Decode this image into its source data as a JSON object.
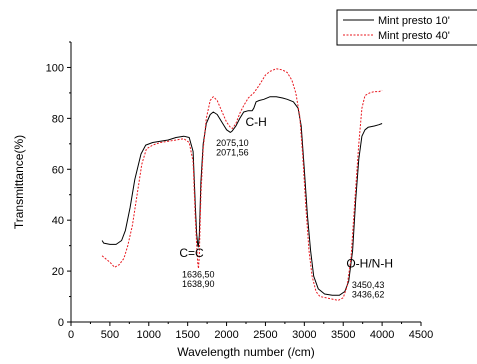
{
  "chart_data": {
    "type": "line",
    "title": "",
    "xlabel": "Wavelength number (/cm)",
    "ylabel": "Transmittance(%)",
    "xlim": [
      0,
      4500
    ],
    "ylim": [
      0,
      110
    ],
    "x_ticks": [
      "0",
      "500",
      "1000",
      "1500",
      "2000",
      "2500",
      "3000",
      "3500",
      "4000",
      "4500"
    ],
    "y_ticks": [
      "0",
      "20",
      "40",
      "60",
      "80",
      "100"
    ],
    "legend_position": "top-right",
    "grid": false,
    "series": [
      {
        "name": "Mint presto 10'",
        "color": "#000000",
        "style": "solid",
        "points": [
          [
            400,
            32
          ],
          [
            420,
            31
          ],
          [
            500,
            30.5
          ],
          [
            580,
            30.5
          ],
          [
            650,
            32
          ],
          [
            700,
            36
          ],
          [
            760,
            45
          ],
          [
            820,
            56
          ],
          [
            900,
            66
          ],
          [
            960,
            69.5
          ],
          [
            1050,
            70.5
          ],
          [
            1150,
            71
          ],
          [
            1250,
            71.5
          ],
          [
            1350,
            72.5
          ],
          [
            1450,
            73
          ],
          [
            1520,
            72.5
          ],
          [
            1570,
            67
          ],
          [
            1600,
            45
          ],
          [
            1615,
            35
          ],
          [
            1630,
            30
          ],
          [
            1637,
            29.5
          ],
          [
            1650,
            34
          ],
          [
            1670,
            55
          ],
          [
            1700,
            70
          ],
          [
            1740,
            78
          ],
          [
            1790,
            81.5
          ],
          [
            1830,
            82.5
          ],
          [
            1880,
            81.5
          ],
          [
            1950,
            78
          ],
          [
            2000,
            75.5
          ],
          [
            2050,
            74.5
          ],
          [
            2071,
            75
          ],
          [
            2120,
            77
          ],
          [
            2170,
            80
          ],
          [
            2220,
            82.5
          ],
          [
            2280,
            83
          ],
          [
            2330,
            83
          ],
          [
            2350,
            84
          ],
          [
            2380,
            86.5
          ],
          [
            2420,
            87
          ],
          [
            2480,
            87.5
          ],
          [
            2560,
            88.5
          ],
          [
            2640,
            88.5
          ],
          [
            2720,
            88
          ],
          [
            2780,
            87.5
          ],
          [
            2860,
            86.5
          ],
          [
            2920,
            84
          ],
          [
            2960,
            77
          ],
          [
            3000,
            60
          ],
          [
            3040,
            42
          ],
          [
            3080,
            28
          ],
          [
            3120,
            18
          ],
          [
            3180,
            13
          ],
          [
            3260,
            11
          ],
          [
            3360,
            10.5
          ],
          [
            3450,
            10.5
          ],
          [
            3520,
            12
          ],
          [
            3570,
            16
          ],
          [
            3620,
            28
          ],
          [
            3660,
            48
          ],
          [
            3700,
            64
          ],
          [
            3740,
            73
          ],
          [
            3780,
            75.5
          ],
          [
            3820,
            76.5
          ],
          [
            3900,
            77
          ],
          [
            3960,
            77.5
          ],
          [
            4000,
            78
          ]
        ]
      },
      {
        "name": "Mint presto 40'",
        "color": "#e8171e",
        "style": "dotted",
        "points": [
          [
            400,
            26
          ],
          [
            440,
            25
          ],
          [
            500,
            23.5
          ],
          [
            560,
            21.5
          ],
          [
            620,
            22.5
          ],
          [
            680,
            25
          ],
          [
            730,
            30
          ],
          [
            790,
            38
          ],
          [
            850,
            50
          ],
          [
            910,
            62
          ],
          [
            970,
            68
          ],
          [
            1050,
            69.5
          ],
          [
            1150,
            70.5
          ],
          [
            1250,
            71
          ],
          [
            1350,
            71.5
          ],
          [
            1450,
            72
          ],
          [
            1520,
            70.5
          ],
          [
            1570,
            63
          ],
          [
            1600,
            40
          ],
          [
            1620,
            28
          ],
          [
            1630,
            23
          ],
          [
            1639,
            21
          ],
          [
            1650,
            26
          ],
          [
            1670,
            50
          ],
          [
            1700,
            68
          ],
          [
            1740,
            80
          ],
          [
            1790,
            87
          ],
          [
            1830,
            88.5
          ],
          [
            1880,
            87
          ],
          [
            1950,
            82
          ],
          [
            2000,
            78.5
          ],
          [
            2050,
            76.5
          ],
          [
            2075,
            76
          ],
          [
            2120,
            78
          ],
          [
            2170,
            82
          ],
          [
            2220,
            85
          ],
          [
            2280,
            88
          ],
          [
            2350,
            90
          ],
          [
            2420,
            93
          ],
          [
            2500,
            97
          ],
          [
            2560,
            98.5
          ],
          [
            2640,
            99.5
          ],
          [
            2720,
            99
          ],
          [
            2780,
            98
          ],
          [
            2840,
            95
          ],
          [
            2890,
            90
          ],
          [
            2940,
            81
          ],
          [
            2980,
            65
          ],
          [
            3020,
            45
          ],
          [
            3060,
            28
          ],
          [
            3100,
            18
          ],
          [
            3150,
            12
          ],
          [
            3200,
            10
          ],
          [
            3280,
            9.5
          ],
          [
            3360,
            9
          ],
          [
            3436,
            8.5
          ],
          [
            3500,
            9.5
          ],
          [
            3550,
            14
          ],
          [
            3600,
            25
          ],
          [
            3650,
            48
          ],
          [
            3700,
            70
          ],
          [
            3740,
            84
          ],
          [
            3780,
            89
          ],
          [
            3840,
            90
          ],
          [
            3900,
            90.5
          ],
          [
            3960,
            90.5
          ],
          [
            4000,
            91
          ]
        ]
      }
    ],
    "annotations": [
      {
        "text": "C-H",
        "x": 2380,
        "y": 77,
        "size": "large"
      },
      {
        "text": "2075,10",
        "x": 2075,
        "y": 69.2,
        "size": "small"
      },
      {
        "text": "2071,56",
        "x": 2075,
        "y": 65.5,
        "size": "small"
      },
      {
        "text": "C=C",
        "x": 1550,
        "y": 25.5,
        "size": "large"
      },
      {
        "text": "1636,50",
        "x": 1636,
        "y": 17.5,
        "size": "small"
      },
      {
        "text": "1638,90",
        "x": 1636,
        "y": 13.8,
        "size": "small"
      },
      {
        "text": "O-H/N-H",
        "x": 3840,
        "y": 21.5,
        "size": "large"
      },
      {
        "text": "3450,43",
        "x": 3820,
        "y": 13.3,
        "size": "small"
      },
      {
        "text": "3436,62",
        "x": 3820,
        "y": 9.6,
        "size": "small"
      }
    ]
  }
}
